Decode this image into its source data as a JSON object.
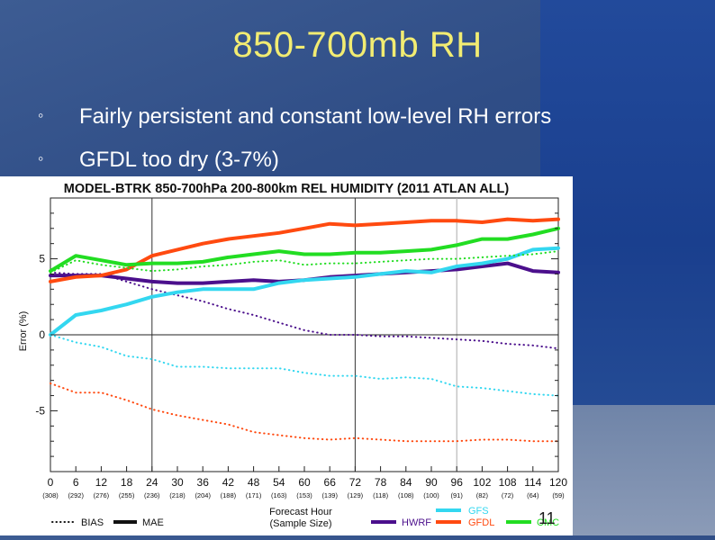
{
  "slide": {
    "title": "850-700mb RH",
    "bullets": [
      {
        "marker": "◦",
        "text": "Fairly persistent and constant low-level RH errors"
      },
      {
        "marker": "◦",
        "text": "GFDL too dry (3-7%)"
      }
    ],
    "slide_number": "11"
  },
  "colors": {
    "HWRF": "#4b0f8c",
    "GFDL": "#ff4a10",
    "GFS": "#33d7f0",
    "CMC": "#22dd22"
  },
  "chart_data": {
    "type": "line",
    "title": "MODEL-BTRK 850-700hPa 200-800km REL HUMIDITY (2011 ATLAN ALL)",
    "xlabel": "Forecast Hour",
    "xlabel2": "(Sample Size)",
    "ylabel": "Error (%)",
    "ylim": [
      -9,
      9
    ],
    "xlim": [
      0,
      120
    ],
    "grid": "vertical lines at 24, 72, 96",
    "x": [
      0,
      6,
      12,
      18,
      24,
      30,
      36,
      42,
      48,
      54,
      60,
      66,
      72,
      78,
      84,
      90,
      96,
      102,
      108,
      114,
      120
    ],
    "xticklabels": [
      "0",
      "6",
      "12",
      "18",
      "24",
      "30",
      "36",
      "42",
      "48",
      "54",
      "60",
      "66",
      "72",
      "78",
      "84",
      "90",
      "96",
      "102",
      "108",
      "114",
      "120"
    ],
    "yticks": [
      -5,
      0,
      5
    ],
    "sample_sizes": [
      "(308)",
      "(292)",
      "(276)",
      "(255)",
      "(236)",
      "(218)",
      "(204)",
      "(188)",
      "(171)",
      "(163)",
      "(153)",
      "(139)",
      "(129)",
      "(118)",
      "(108)",
      "(100)",
      "(91)",
      "(82)",
      "(72)",
      "(64)",
      "(59)"
    ],
    "legend": {
      "style_items": [
        {
          "label": "BIAS",
          "style": "dotted"
        },
        {
          "label": "MAE",
          "style": "solid"
        }
      ],
      "model_items": [
        "HWRF",
        "GFS",
        "GFDL",
        "CMC"
      ]
    },
    "series": [
      {
        "name": "HWRF",
        "metric": "MAE",
        "values": [
          3.9,
          3.9,
          3.9,
          3.7,
          3.5,
          3.4,
          3.4,
          3.5,
          3.6,
          3.5,
          3.6,
          3.8,
          3.9,
          4.0,
          4.1,
          4.2,
          4.3,
          4.5,
          4.7,
          4.2,
          4.1
        ]
      },
      {
        "name": "HWRF",
        "metric": "BIAS",
        "values": [
          4.1,
          4.0,
          4.0,
          3.5,
          3.0,
          2.6,
          2.2,
          1.7,
          1.3,
          0.8,
          0.3,
          0.0,
          0.0,
          -0.1,
          -0.1,
          -0.2,
          -0.3,
          -0.4,
          -0.6,
          -0.7,
          -0.9
        ]
      },
      {
        "name": "GFDL",
        "metric": "MAE",
        "values": [
          3.5,
          3.8,
          3.9,
          4.3,
          5.2,
          5.6,
          6.0,
          6.3,
          6.5,
          6.7,
          7.0,
          7.3,
          7.2,
          7.3,
          7.4,
          7.5,
          7.5,
          7.4,
          7.6,
          7.5,
          7.6
        ]
      },
      {
        "name": "GFDL",
        "metric": "BIAS",
        "values": [
          -3.2,
          -3.8,
          -3.8,
          -4.3,
          -4.9,
          -5.3,
          -5.6,
          -5.9,
          -6.4,
          -6.6,
          -6.8,
          -6.9,
          -6.8,
          -6.9,
          -7.0,
          -7.0,
          -7.0,
          -6.9,
          -6.9,
          -7.0,
          -7.0
        ]
      },
      {
        "name": "GFS",
        "metric": "MAE",
        "values": [
          0.0,
          1.3,
          1.6,
          2.0,
          2.5,
          2.8,
          3.0,
          3.0,
          3.0,
          3.4,
          3.6,
          3.7,
          3.8,
          4.0,
          4.2,
          4.1,
          4.5,
          4.7,
          5.0,
          5.6,
          5.7
        ]
      },
      {
        "name": "GFS",
        "metric": "BIAS",
        "values": [
          0.0,
          -0.5,
          -0.8,
          -1.4,
          -1.6,
          -2.1,
          -2.1,
          -2.2,
          -2.2,
          -2.2,
          -2.5,
          -2.7,
          -2.7,
          -2.9,
          -2.8,
          -2.9,
          -3.4,
          -3.5,
          -3.7,
          -3.9,
          -4.0
        ]
      },
      {
        "name": "CMC",
        "metric": "MAE",
        "values": [
          4.2,
          5.2,
          4.9,
          4.6,
          4.7,
          4.7,
          4.8,
          5.1,
          5.3,
          5.5,
          5.3,
          5.3,
          5.4,
          5.4,
          5.5,
          5.6,
          5.9,
          6.3,
          6.3,
          6.6,
          7.0
        ]
      },
      {
        "name": "CMC",
        "metric": "BIAS",
        "values": [
          4.1,
          4.9,
          4.6,
          4.4,
          4.2,
          4.3,
          4.5,
          4.6,
          4.8,
          4.9,
          4.6,
          4.7,
          4.7,
          4.8,
          4.9,
          5.0,
          5.0,
          5.1,
          5.2,
          5.3,
          5.5
        ]
      }
    ]
  }
}
